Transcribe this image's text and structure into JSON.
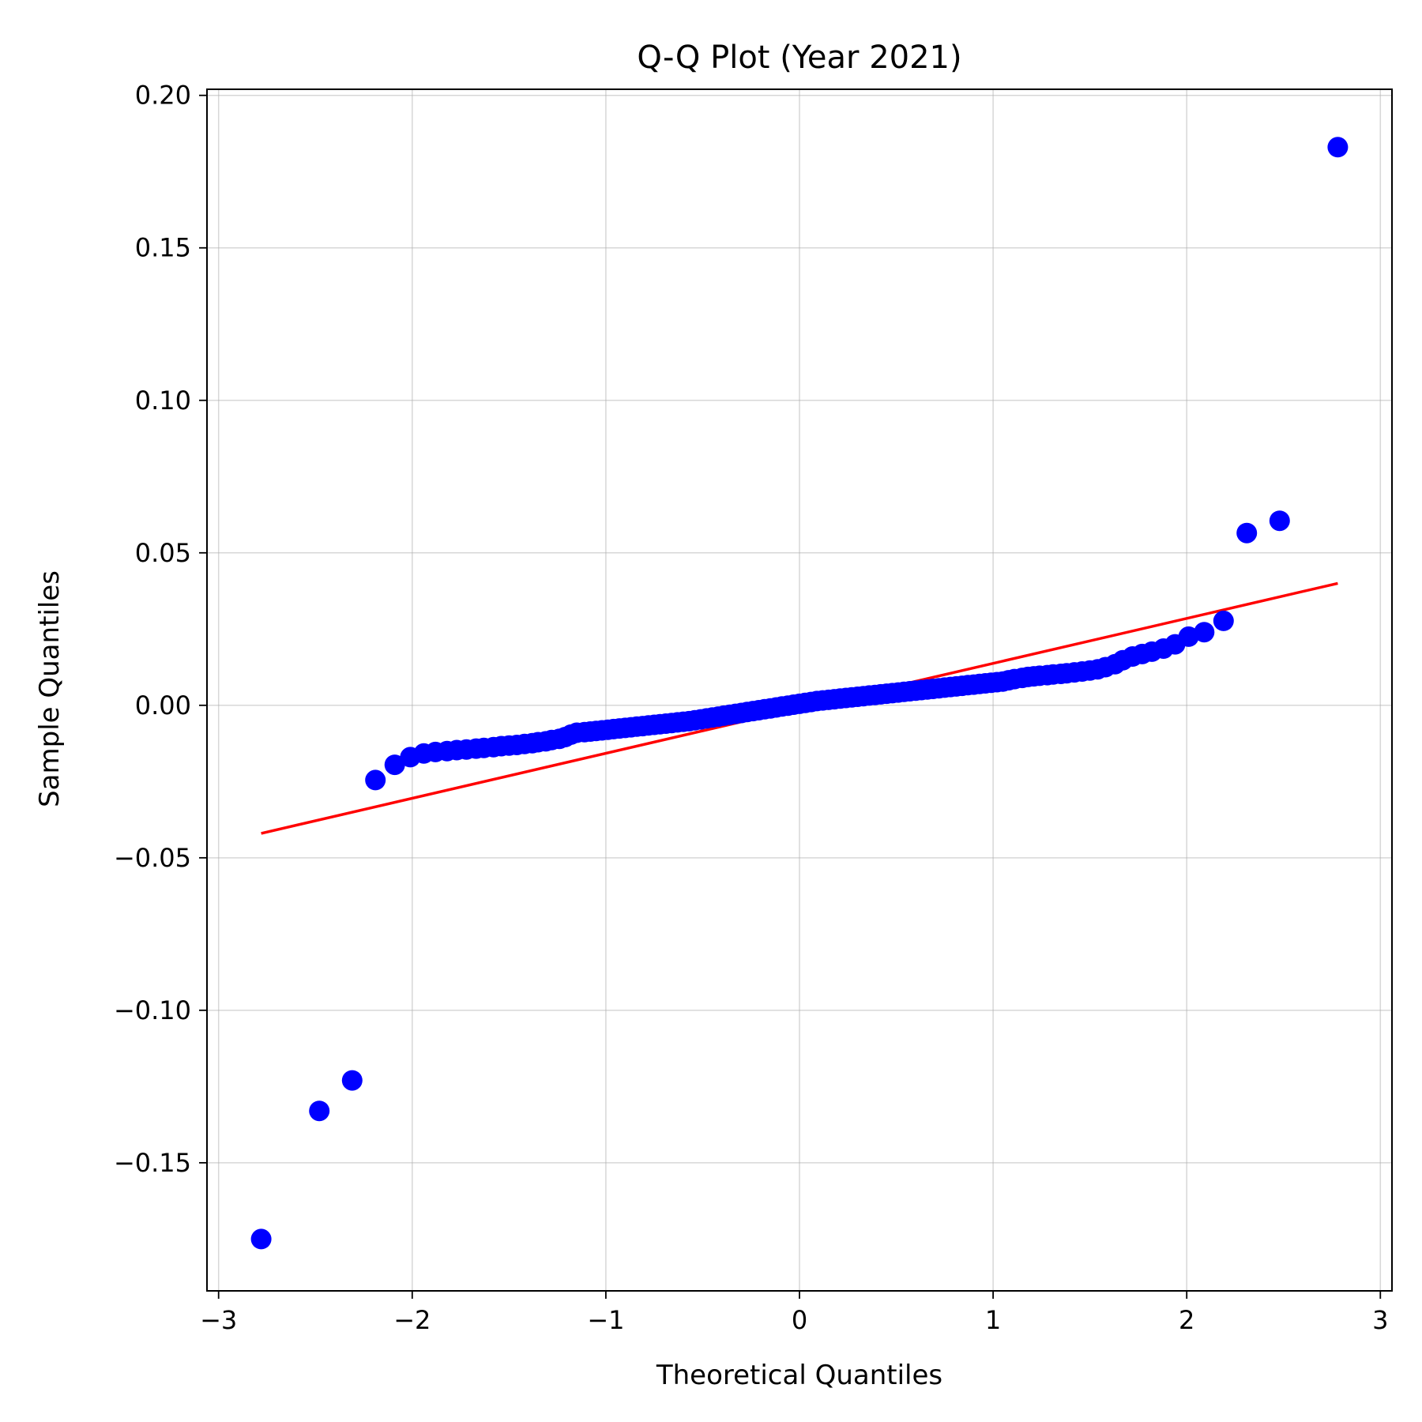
{
  "chart_data": {
    "type": "scatter",
    "title": "Q-Q Plot (Year 2021)",
    "xlabel": "Theoretical Quantiles",
    "ylabel": "Sample Quantiles",
    "xlim": [
      -3.06,
      3.06
    ],
    "ylim": [
      -0.192,
      0.202
    ],
    "grid": true,
    "x_ticks": [
      -3,
      -2,
      -1,
      0,
      1,
      2,
      3
    ],
    "x_tick_labels": [
      "−3",
      "−2",
      "−1",
      "0",
      "1",
      "2",
      "3"
    ],
    "y_ticks": [
      -0.15,
      -0.1,
      -0.05,
      0.0,
      0.05,
      0.1,
      0.15,
      0.2
    ],
    "y_tick_labels": [
      "−0.15",
      "−0.10",
      "−0.05",
      "0.00",
      "0.05",
      "0.10",
      "0.15",
      "0.20"
    ],
    "series": [
      {
        "kind": "points",
        "color": "#0000ff",
        "points": [
          [
            -2.78,
            -0.175
          ],
          [
            -2.48,
            -0.133
          ],
          [
            -2.31,
            -0.123
          ],
          [
            -2.19,
            -0.0245
          ],
          [
            -2.09,
            -0.0195
          ],
          [
            -2.01,
            -0.017
          ],
          [
            -1.94,
            -0.0158
          ],
          [
            -1.88,
            -0.0153
          ],
          [
            -1.82,
            -0.015
          ],
          [
            -1.77,
            -0.0147
          ],
          [
            -1.72,
            -0.0145
          ],
          [
            -1.67,
            -0.0142
          ],
          [
            -1.63,
            -0.014
          ],
          [
            -1.58,
            -0.0137
          ],
          [
            -1.54,
            -0.0134
          ],
          [
            -1.5,
            -0.0132
          ],
          [
            -1.46,
            -0.013
          ],
          [
            -1.42,
            -0.0127
          ],
          [
            -1.38,
            -0.0124
          ],
          [
            -1.35,
            -0.0121
          ],
          [
            -1.31,
            -0.0118
          ],
          [
            -1.28,
            -0.0114
          ],
          [
            -1.24,
            -0.011
          ],
          [
            -1.21,
            -0.0104
          ],
          [
            -1.18,
            -0.0096
          ],
          [
            -1.15,
            -0.009
          ],
          [
            -1.11,
            -0.0088
          ],
          [
            -1.08,
            -0.0086
          ],
          [
            -1.05,
            -0.0084
          ],
          [
            -1.02,
            -0.0082
          ],
          [
            -0.99,
            -0.008
          ],
          [
            -0.96,
            -0.0078
          ],
          [
            -0.93,
            -0.0076
          ],
          [
            -0.9,
            -0.0074
          ],
          [
            -0.87,
            -0.0072
          ],
          [
            -0.84,
            -0.007
          ],
          [
            -0.81,
            -0.0068
          ],
          [
            -0.78,
            -0.0066
          ],
          [
            -0.75,
            -0.0064
          ],
          [
            -0.72,
            -0.0062
          ],
          [
            -0.69,
            -0.006
          ],
          [
            -0.66,
            -0.0058
          ],
          [
            -0.63,
            -0.0056
          ],
          [
            -0.6,
            -0.0054
          ],
          [
            -0.57,
            -0.0052
          ],
          [
            -0.54,
            -0.0049
          ],
          [
            -0.51,
            -0.0046
          ],
          [
            -0.48,
            -0.0043
          ],
          [
            -0.45,
            -0.004
          ],
          [
            -0.42,
            -0.0037
          ],
          [
            -0.39,
            -0.0034
          ],
          [
            -0.36,
            -0.0031
          ],
          [
            -0.33,
            -0.0028
          ],
          [
            -0.3,
            -0.0025
          ],
          [
            -0.27,
            -0.0022
          ],
          [
            -0.24,
            -0.0019
          ],
          [
            -0.21,
            -0.0016
          ],
          [
            -0.18,
            -0.0013
          ],
          [
            -0.15,
            -0.001
          ],
          [
            -0.12,
            -0.0007
          ],
          [
            -0.09,
            -0.0004
          ],
          [
            -0.06,
            -0.0001
          ],
          [
            -0.03,
            0.0002
          ],
          [
            0.0,
            0.0005
          ],
          [
            0.03,
            0.0008
          ],
          [
            0.06,
            0.0011
          ],
          [
            0.09,
            0.0014
          ],
          [
            0.12,
            0.0016
          ],
          [
            0.15,
            0.0018
          ],
          [
            0.18,
            0.002
          ],
          [
            0.21,
            0.0022
          ],
          [
            0.24,
            0.0024
          ],
          [
            0.27,
            0.0026
          ],
          [
            0.3,
            0.0028
          ],
          [
            0.33,
            0.003
          ],
          [
            0.36,
            0.0032
          ],
          [
            0.39,
            0.0034
          ],
          [
            0.42,
            0.0036
          ],
          [
            0.45,
            0.0038
          ],
          [
            0.48,
            0.004
          ],
          [
            0.51,
            0.0042
          ],
          [
            0.54,
            0.0044
          ],
          [
            0.57,
            0.0046
          ],
          [
            0.6,
            0.0048
          ],
          [
            0.63,
            0.005
          ],
          [
            0.66,
            0.0052
          ],
          [
            0.69,
            0.0054
          ],
          [
            0.72,
            0.0056
          ],
          [
            0.75,
            0.0058
          ],
          [
            0.78,
            0.006
          ],
          [
            0.81,
            0.0062
          ],
          [
            0.84,
            0.0064
          ],
          [
            0.87,
            0.0066
          ],
          [
            0.9,
            0.0068
          ],
          [
            0.93,
            0.007
          ],
          [
            0.96,
            0.0072
          ],
          [
            0.99,
            0.0074
          ],
          [
            1.02,
            0.0076
          ],
          [
            1.05,
            0.0078
          ],
          [
            1.08,
            0.0082
          ],
          [
            1.11,
            0.0086
          ],
          [
            1.15,
            0.009
          ],
          [
            1.18,
            0.0093
          ],
          [
            1.21,
            0.0095
          ],
          [
            1.24,
            0.0097
          ],
          [
            1.28,
            0.0099
          ],
          [
            1.31,
            0.0101
          ],
          [
            1.35,
            0.0103
          ],
          [
            1.38,
            0.0105
          ],
          [
            1.42,
            0.0108
          ],
          [
            1.46,
            0.0111
          ],
          [
            1.5,
            0.0114
          ],
          [
            1.54,
            0.0118
          ],
          [
            1.58,
            0.0125
          ],
          [
            1.63,
            0.0135
          ],
          [
            1.67,
            0.0148
          ],
          [
            1.72,
            0.016
          ],
          [
            1.77,
            0.0168
          ],
          [
            1.82,
            0.0176
          ],
          [
            1.88,
            0.0186
          ],
          [
            1.94,
            0.02
          ],
          [
            2.01,
            0.0225
          ],
          [
            2.09,
            0.024
          ],
          [
            2.19,
            0.0277
          ],
          [
            2.31,
            0.0565
          ],
          [
            2.48,
            0.0605
          ],
          [
            2.78,
            0.183
          ]
        ]
      },
      {
        "kind": "line",
        "color": "#ff0000",
        "points": [
          [
            -2.78,
            -0.042
          ],
          [
            2.78,
            0.04
          ]
        ]
      }
    ]
  }
}
